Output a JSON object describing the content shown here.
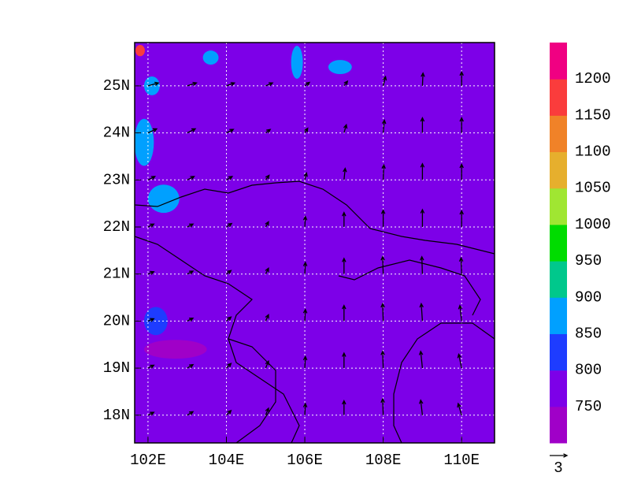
{
  "chart_data": {
    "type": "vector-map",
    "xticks": [
      {
        "value": 102,
        "label": "102E"
      },
      {
        "value": 104,
        "label": "104E"
      },
      {
        "value": 106,
        "label": "106E"
      },
      {
        "value": 108,
        "label": "108E"
      },
      {
        "value": 110,
        "label": "110E"
      }
    ],
    "yticks": [
      {
        "value": 18,
        "label": "18N"
      },
      {
        "value": 19,
        "label": "19N"
      },
      {
        "value": 20,
        "label": "20N"
      },
      {
        "value": 21,
        "label": "21N"
      },
      {
        "value": 22,
        "label": "22N"
      },
      {
        "value": 23,
        "label": "23N"
      },
      {
        "value": 24,
        "label": "24N"
      },
      {
        "value": 25,
        "label": "25N"
      }
    ],
    "xlim": [
      101.66,
      110.84
    ],
    "ylim": [
      17.41,
      25.92
    ],
    "grid": true,
    "background_color": "#7d00e8",
    "colorbar": {
      "levels": [
        750,
        800,
        850,
        900,
        950,
        1000,
        1050,
        1100,
        1150,
        1200
      ],
      "colors": [
        "#a000c8",
        "#7d00e8",
        "#1e3cff",
        "#00a0ff",
        "#00c88c",
        "#00dc00",
        "#a0e632",
        "#e6af2d",
        "#f08228",
        "#fa3c3c",
        "#f00082"
      ]
    },
    "blobs": [
      {
        "lon": 101.9,
        "lat": 23.8,
        "rx": 0.25,
        "ry": 0.5,
        "color": "#00a0ff"
      },
      {
        "lon": 102.4,
        "lat": 22.6,
        "rx": 0.4,
        "ry": 0.3,
        "color": "#00a0ff"
      },
      {
        "lon": 102.1,
        "lat": 25.0,
        "rx": 0.2,
        "ry": 0.2,
        "color": "#00a0ff"
      },
      {
        "lon": 101.8,
        "lat": 25.75,
        "rx": 0.12,
        "ry": 0.12,
        "color": "#fa3c3c"
      },
      {
        "lon": 105.8,
        "lat": 25.5,
        "rx": 0.15,
        "ry": 0.35,
        "color": "#00a0ff"
      },
      {
        "lon": 106.9,
        "lat": 25.4,
        "rx": 0.3,
        "ry": 0.15,
        "color": "#00a0ff"
      },
      {
        "lon": 103.6,
        "lat": 25.6,
        "rx": 0.2,
        "ry": 0.15,
        "color": "#00a0ff"
      },
      {
        "lon": 102.2,
        "lat": 20.0,
        "rx": 0.3,
        "ry": 0.3,
        "color": "#1e3cff"
      },
      {
        "lon": 102.7,
        "lat": 19.4,
        "rx": 0.8,
        "ry": 0.2,
        "color": "#a000c8"
      }
    ],
    "wind": {
      "lons": [
        102,
        103,
        104,
        105,
        106,
        107,
        108,
        109,
        110
      ],
      "lats": [
        18,
        19,
        20,
        21,
        22,
        23,
        24,
        25
      ],
      "u": [
        [
          1.0,
          1.0,
          0.8,
          0.5,
          0.1,
          0.0,
          -0.1,
          -0.3,
          -0.6
        ],
        [
          1.0,
          1.0,
          0.8,
          0.5,
          0.1,
          0.0,
          -0.1,
          -0.3,
          -0.5
        ],
        [
          1.0,
          1.0,
          0.8,
          0.5,
          0.1,
          0.0,
          -0.1,
          -0.2,
          -0.3
        ],
        [
          1.0,
          1.0,
          0.8,
          0.5,
          0.1,
          0.0,
          -0.1,
          -0.1,
          -0.1
        ],
        [
          1.0,
          1.0,
          0.9,
          0.5,
          0.1,
          0.0,
          0.0,
          0.0,
          0.0
        ],
        [
          1.2,
          1.2,
          1.0,
          0.6,
          0.3,
          0.2,
          0.1,
          0.0,
          0.0
        ],
        [
          1.5,
          1.4,
          1.2,
          0.8,
          0.5,
          0.4,
          0.2,
          0.0,
          0.0
        ],
        [
          1.8,
          1.6,
          1.4,
          1.2,
          0.8,
          0.6,
          0.4,
          0.1,
          0.0
        ]
      ],
      "v": [
        [
          0.5,
          0.6,
          0.8,
          1.2,
          2.0,
          2.5,
          2.8,
          2.6,
          2.0
        ],
        [
          0.5,
          0.6,
          0.8,
          1.2,
          2.0,
          2.6,
          2.9,
          2.9,
          2.4
        ],
        [
          0.4,
          0.5,
          0.7,
          1.1,
          2.0,
          2.7,
          3.0,
          3.0,
          2.7
        ],
        [
          0.4,
          0.5,
          0.6,
          1.0,
          2.0,
          2.7,
          3.0,
          3.0,
          2.8
        ],
        [
          0.5,
          0.5,
          0.6,
          0.9,
          1.8,
          2.5,
          2.9,
          3.0,
          2.8
        ],
        [
          0.6,
          0.6,
          0.6,
          0.8,
          1.2,
          2.0,
          2.6,
          2.8,
          2.7
        ],
        [
          0.7,
          0.7,
          0.6,
          0.6,
          0.8,
          1.4,
          2.2,
          2.6,
          2.6
        ],
        [
          0.5,
          0.5,
          0.5,
          0.5,
          0.6,
          0.8,
          1.6,
          2.2,
          2.4
        ]
      ]
    },
    "reference_vector": {
      "value": 3,
      "label": "3"
    }
  }
}
